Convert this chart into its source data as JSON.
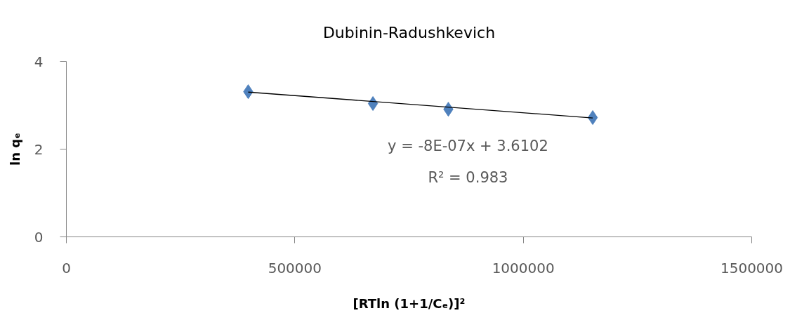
{
  "chart_data": {
    "type": "scatter",
    "title": "Dubinin-Radushkevich",
    "xlabel": "[RTln (1+1/Cₑ)]²",
    "ylabel": "ln qₑ",
    "annotations": [
      "y = -8E-07x + 3.6102",
      "R² = 0.983"
    ],
    "xlim": [
      0,
      1500000
    ],
    "ylim": [
      0,
      4
    ],
    "xticks": [
      0,
      500000,
      1000000,
      1500000
    ],
    "yticks": [
      0,
      2,
      4
    ],
    "grid": false,
    "marker": "diamond",
    "series": [
      {
        "type": "scatter",
        "color": "#4f81bd",
        "x": [
          398000,
          671000,
          836000,
          1152000
        ],
        "values": [
          3.31,
          3.04,
          2.91,
          2.72
        ]
      },
      {
        "type": "line",
        "color": "#000000",
        "marker": "none",
        "line_style": "solid",
        "x": [
          398000,
          1152000
        ],
        "values": [
          3.3,
          2.71
        ]
      }
    ]
  }
}
